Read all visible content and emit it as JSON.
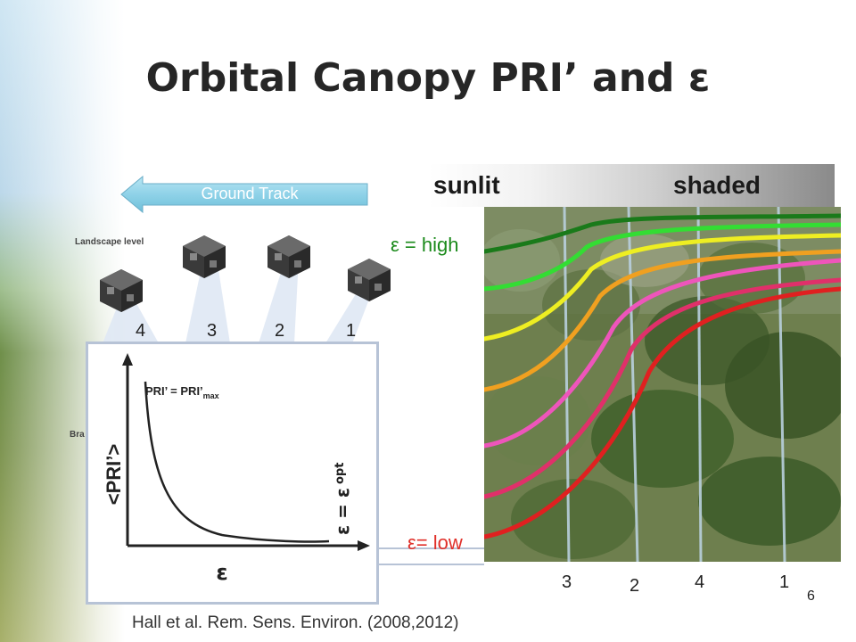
{
  "title": "Orbital Canopy PRI’ and ε",
  "ground_track": "Ground Track",
  "landscape_label": "Landscape level",
  "bra_label": "Bra",
  "satellite_numbers": [
    "4",
    "3",
    "2",
    "1"
  ],
  "inset": {
    "y_label": "<PRI’>",
    "x_label": "ε",
    "max_label_main": "PRI’ = PRI’",
    "max_label_sub": "max",
    "opt_label_main": "ε = ε",
    "opt_label_sub": "opt"
  },
  "sunlit": "sunlit",
  "shaded": "shaded",
  "eps_high": "ε = high",
  "eps_low": "ε= low",
  "bottom_numbers": [
    "3",
    "2",
    "4",
    "1"
  ],
  "page_number": "6",
  "citation": "Hall et al. Rem. Sens. Environ. (2008,2012)",
  "colors": {
    "curves": [
      "#1a7a1a",
      "#33dd33",
      "#eeee22",
      "#f0a020",
      "#ee55bb",
      "#e0306a",
      "#e02020"
    ],
    "arrow": "#8fd2e8"
  }
}
